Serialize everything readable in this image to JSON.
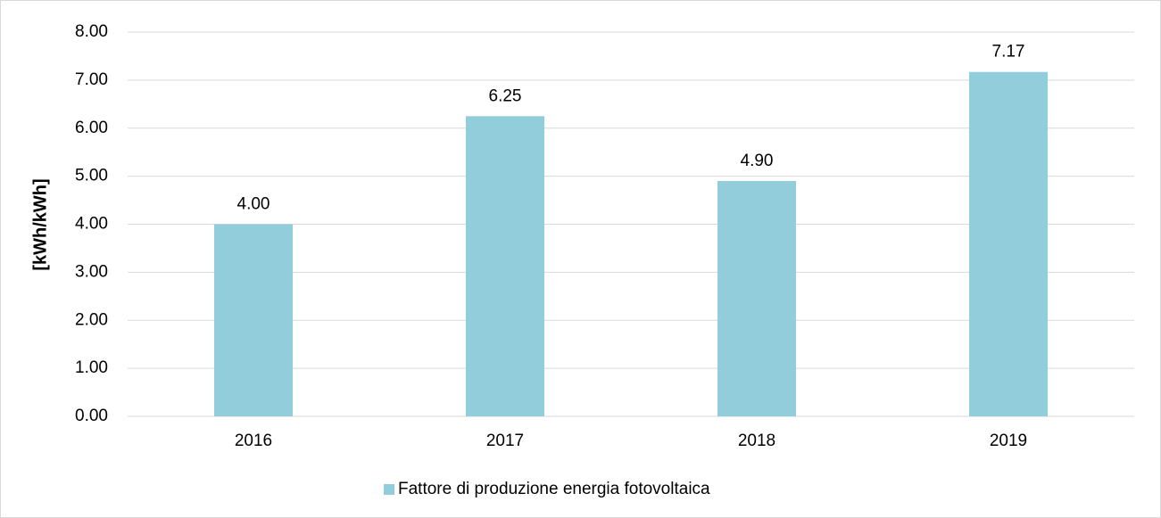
{
  "chart_data": {
    "type": "bar",
    "y_label": "[kWh/kWh]",
    "categories": [
      "2016",
      "2017",
      "2018",
      "2019"
    ],
    "series": [
      {
        "name": "Fattore di produzione energia fotovoltaica",
        "color": "#92cddc",
        "values": [
          4.0,
          6.25,
          4.9,
          7.17
        ],
        "value_labels": [
          "4.00",
          "6.25",
          "4.90",
          "7.17"
        ]
      }
    ],
    "ylim": [
      0,
      8
    ],
    "yticks": [
      {
        "value": 0,
        "label": "0.00"
      },
      {
        "value": 1,
        "label": "1.00"
      },
      {
        "value": 2,
        "label": "2.00"
      },
      {
        "value": 3,
        "label": "3.00"
      },
      {
        "value": 4,
        "label": "4.00"
      },
      {
        "value": 5,
        "label": "5.00"
      },
      {
        "value": 6,
        "label": "6.00"
      },
      {
        "value": 7,
        "label": "7.00"
      },
      {
        "value": 8,
        "label": "8.00"
      }
    ],
    "grid": true,
    "legend": "bottom"
  }
}
